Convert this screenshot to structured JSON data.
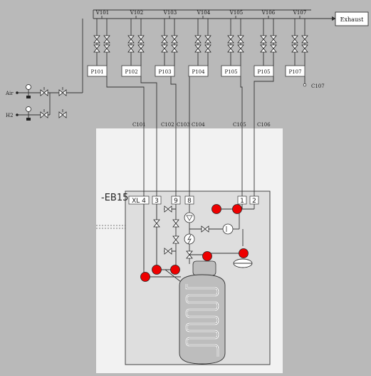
{
  "top_valves": [
    "V101",
    "V102",
    "V103",
    "V104",
    "V105",
    "V106",
    "V107"
  ],
  "pumps": [
    "P101",
    "P102",
    "P103",
    "P104",
    "P105",
    "P105",
    "P107"
  ],
  "exhaust_label": "Exhaust",
  "gas_inputs": [
    "Air",
    "H2"
  ],
  "connectors": [
    "C101",
    "C102",
    "C103",
    "C104",
    "C105",
    "C106"
  ],
  "c107_label": "C107",
  "device_label": "-EB15",
  "ports": [
    "XL 4",
    "3",
    "9",
    "8",
    "1",
    "2"
  ]
}
